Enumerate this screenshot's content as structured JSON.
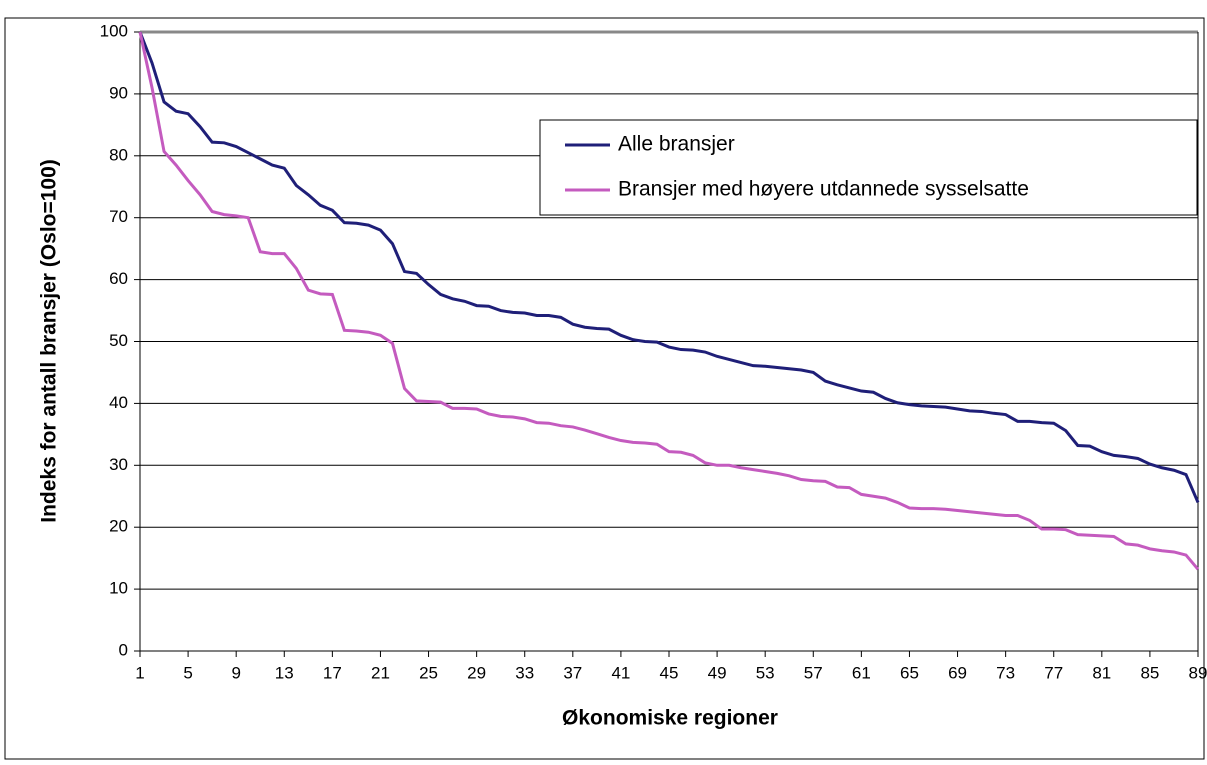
{
  "chart_data": {
    "type": "line",
    "x_label": "Økonomiske regioner",
    "y_label": "Indeks for antall bransjer (Oslo=100)",
    "x": [
      1,
      2,
      3,
      4,
      5,
      6,
      7,
      8,
      9,
      10,
      11,
      12,
      13,
      14,
      15,
      16,
      17,
      18,
      19,
      20,
      21,
      22,
      23,
      24,
      25,
      26,
      27,
      28,
      29,
      30,
      31,
      32,
      33,
      34,
      35,
      36,
      37,
      38,
      39,
      40,
      41,
      42,
      43,
      44,
      45,
      46,
      47,
      48,
      49,
      50,
      51,
      52,
      53,
      54,
      55,
      56,
      57,
      58,
      59,
      60,
      61,
      62,
      63,
      64,
      65,
      66,
      67,
      68,
      69,
      70,
      71,
      72,
      73,
      74,
      75,
      76,
      77,
      78,
      79,
      80,
      81,
      82,
      83,
      84,
      85,
      86,
      87,
      88,
      89
    ],
    "series": [
      {
        "name": "Alle bransjer",
        "color": "#1f1f78",
        "values": [
          100,
          95,
          88.7,
          87.2,
          86.8,
          84.7,
          82.2,
          82.1,
          81.5,
          80.5,
          79.5,
          78.5,
          78,
          75.2,
          73.7,
          72,
          71.2,
          69.2,
          69.1,
          68.8,
          68,
          65.8,
          61.3,
          61,
          59.2,
          57.6,
          56.9,
          56.5,
          55.8,
          55.7,
          55,
          54.7,
          54.6,
          54.2,
          54.2,
          53.9,
          52.8,
          52.3,
          52.1,
          52,
          51,
          50.3,
          50,
          49.9,
          49.1,
          48.7,
          48.6,
          48.3,
          47.6,
          47.1,
          46.6,
          46.1,
          46,
          45.8,
          45.6,
          45.4,
          45,
          43.6,
          43,
          42.5,
          42,
          41.8,
          40.8,
          40.1,
          39.8,
          39.6,
          39.5,
          39.4,
          39.1,
          38.8,
          38.7,
          38.4,
          38.2,
          37.1,
          37.1,
          36.9,
          36.8,
          35.6,
          33.2,
          33.1,
          32.2,
          31.6,
          31.4,
          31.1,
          30.2,
          29.6,
          29.2,
          28.5,
          24
        ]
      },
      {
        "name": "Bransjer med høyere utdannede sysselsatte",
        "color": "#c45bbf",
        "values": [
          100,
          91,
          80.7,
          78.5,
          76,
          73.7,
          71,
          70.5,
          70.3,
          70,
          64.5,
          64.2,
          64.2,
          61.8,
          58.3,
          57.7,
          57.6,
          51.8,
          51.7,
          51.5,
          51,
          49.7,
          42.4,
          40.4,
          40.3,
          40.2,
          39.2,
          39.2,
          39.1,
          38.3,
          37.9,
          37.8,
          37.5,
          36.9,
          36.8,
          36.4,
          36.2,
          35.7,
          35.1,
          34.5,
          34,
          33.7,
          33.6,
          33.4,
          32.2,
          32.1,
          31.6,
          30.4,
          30,
          30,
          29.6,
          29.3,
          29,
          28.7,
          28.3,
          27.7,
          27.5,
          27.4,
          26.5,
          26.4,
          25.3,
          25,
          24.7,
          24,
          23.1,
          23,
          23,
          22.9,
          22.7,
          22.5,
          22.3,
          22.1,
          21.9,
          21.9,
          21.1,
          19.7,
          19.7,
          19.6,
          18.8,
          18.7,
          18.6,
          18.5,
          17.3,
          17.1,
          16.5,
          16.2,
          16,
          15.5,
          13.2
        ]
      }
    ],
    "xlim": [
      1,
      89
    ],
    "xticks": [
      1,
      5,
      9,
      13,
      17,
      21,
      25,
      29,
      33,
      37,
      41,
      45,
      49,
      53,
      57,
      61,
      65,
      69,
      73,
      77,
      81,
      85,
      89
    ],
    "ylim": [
      0,
      100
    ],
    "yticks": [
      0,
      10,
      20,
      30,
      40,
      50,
      60,
      70,
      80,
      90,
      100
    ],
    "grid": true,
    "legend": "upper right"
  }
}
